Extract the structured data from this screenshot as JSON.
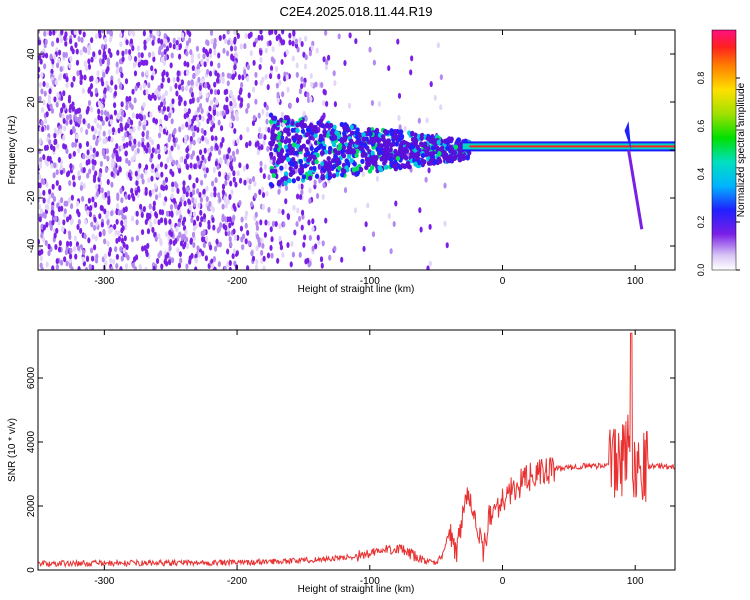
{
  "title": "C2E4.2025.018.11.44.R19",
  "colors": {
    "snr_line": "#e83232",
    "spec_low": "#e6d9f7",
    "spec_mid": "#7a1fe6",
    "spec_hi": "#2040ff"
  },
  "chart_data": [
    {
      "type": "heatmap",
      "xlabel": "Height of straight line (km)",
      "ylabel": "Frequency (Hz)",
      "xlim": [
        -350,
        130
      ],
      "ylim": [
        -50,
        50
      ],
      "xticks": [
        -300,
        -200,
        -100,
        0,
        100
      ],
      "yticks": [
        -40,
        -20,
        0,
        20,
        40
      ],
      "colorbar": {
        "label": "Normalized spectral amplitude",
        "range": [
          0,
          1
        ],
        "ticks": [
          "0.0",
          "0.2",
          "0.4",
          "0.6",
          "0.8"
        ]
      },
      "features": {
        "carrier_freq_hz": 1.5,
        "carrier_start_km": -30,
        "carrier_end_km": 130,
        "noise_region_km": [
          -350,
          -40
        ],
        "spike_km": 95,
        "spike_drop_to_hz": -33
      }
    },
    {
      "type": "line",
      "xlabel": "Height of straight line (km)",
      "ylabel": "SNR (10 * v/v)",
      "xlim": [
        -350,
        130
      ],
      "ylim": [
        0,
        7500
      ],
      "xticks": [
        -300,
        -200,
        -100,
        0,
        100
      ],
      "yticks": [
        0,
        2000,
        4000,
        6000
      ],
      "x": [
        -350,
        -300,
        -250,
        -200,
        -150,
        -120,
        -100,
        -80,
        -60,
        -50,
        -45,
        -40,
        -35,
        -30,
        -25,
        -20,
        -15,
        -10,
        -5,
        0,
        10,
        20,
        30,
        40,
        50,
        60,
        70,
        80,
        85,
        90,
        95,
        100,
        105,
        110,
        120,
        130
      ],
      "y": [
        200,
        210,
        220,
        230,
        300,
        380,
        500,
        700,
        300,
        200,
        500,
        1200,
        500,
        1800,
        2500,
        1500,
        500,
        1600,
        2000,
        2200,
        2600,
        2900,
        3050,
        3150,
        3200,
        3250,
        3250,
        3300,
        3300,
        3400,
        4000,
        3200,
        3400,
        3250,
        3250,
        3200
      ]
    }
  ]
}
